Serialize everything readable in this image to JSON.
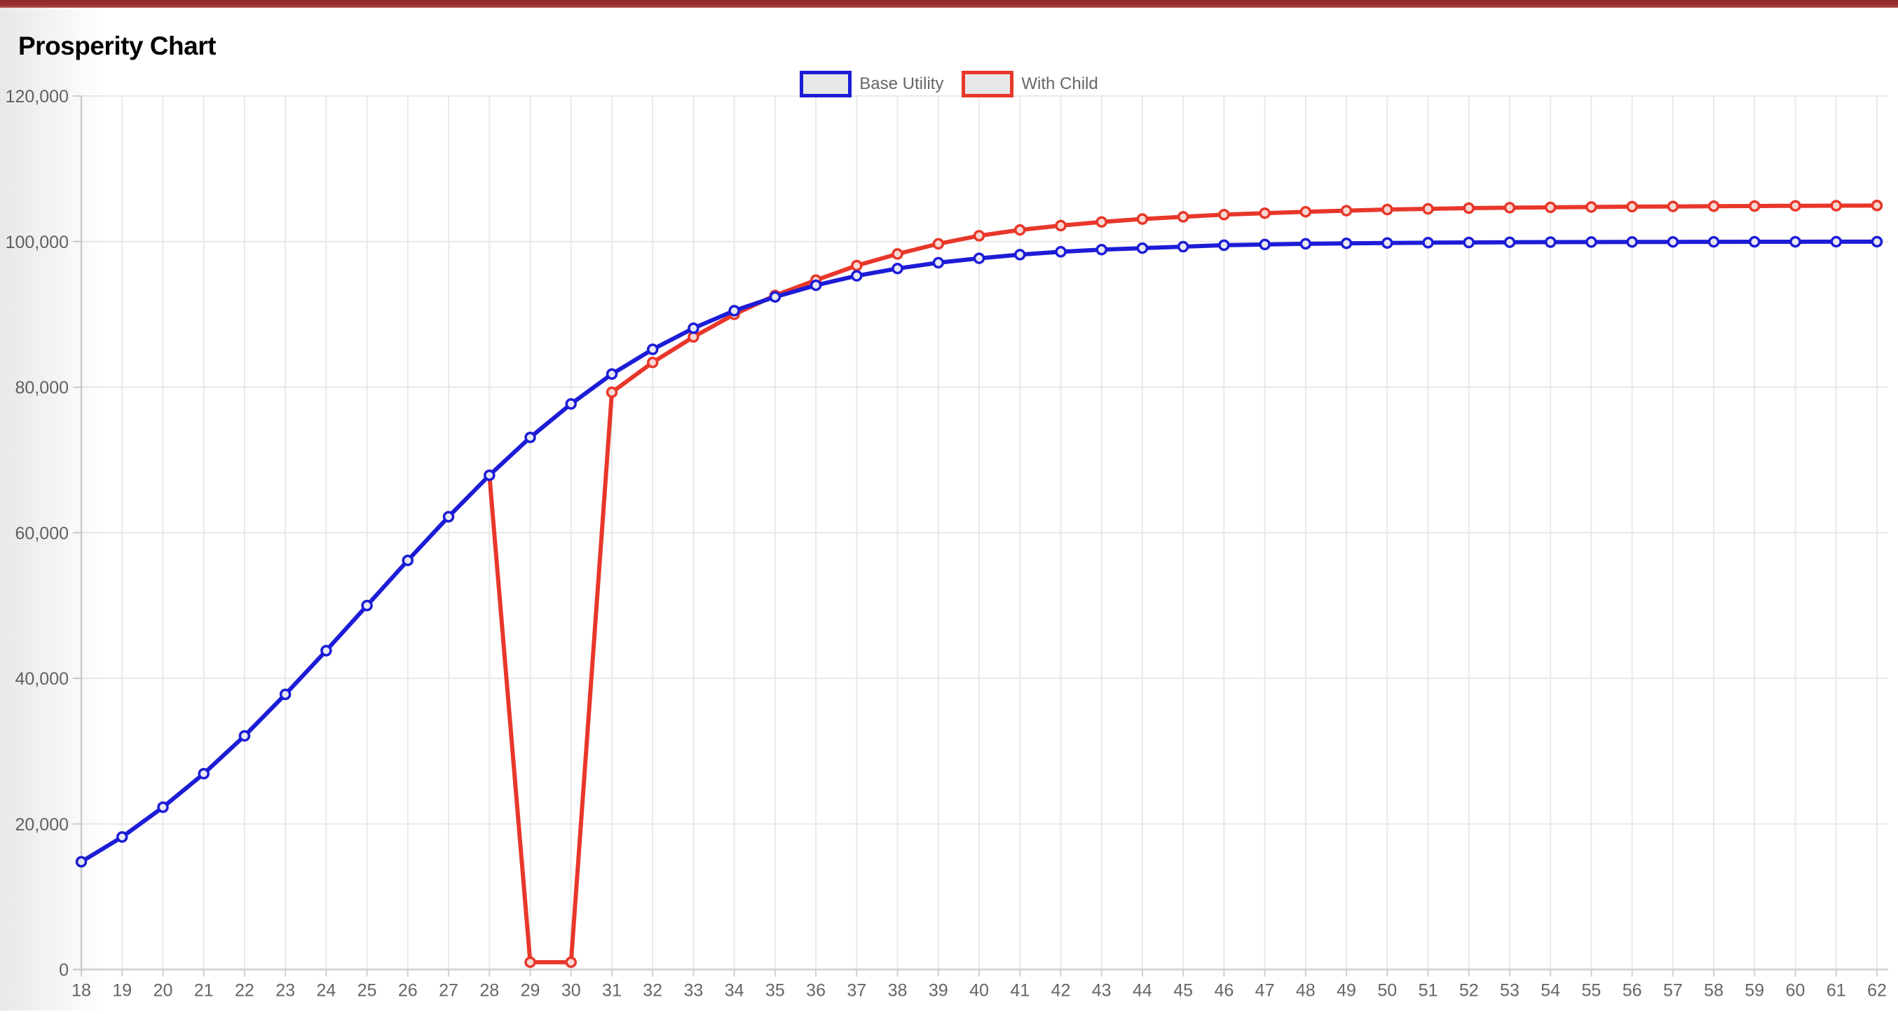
{
  "page": {
    "title": "Prosperity Chart"
  },
  "top_bar": {
    "color": "#9a3030"
  },
  "legend": {
    "items": [
      {
        "label": "Base Utility",
        "color": "#1c1cd7"
      },
      {
        "label": "With Child",
        "color": "#e8372a"
      }
    ]
  },
  "chart_data": {
    "type": "line",
    "title": "",
    "xlabel": "",
    "ylabel": "",
    "x": [
      18,
      19,
      20,
      21,
      22,
      23,
      24,
      25,
      26,
      27,
      28,
      29,
      30,
      31,
      32,
      33,
      34,
      35,
      36,
      37,
      38,
      39,
      40,
      41,
      42,
      43,
      44,
      45,
      46,
      47,
      48,
      49,
      50,
      51,
      52,
      53,
      54,
      55,
      56,
      57,
      58,
      59,
      60,
      61,
      62
    ],
    "series": [
      {
        "name": "Base Utility",
        "color": "#1c1cd7",
        "point_fill": "#e8e8f5",
        "values": [
          14800,
          18200,
          22300,
          26900,
          32100,
          37800,
          43800,
          50000,
          56200,
          62200,
          67900,
          73100,
          77700,
          81800,
          85200,
          88100,
          90500,
          92400,
          94000,
          95300,
          96300,
          97100,
          97700,
          98200,
          98600,
          98900,
          99100,
          99300,
          99500,
          99600,
          99700,
          99750,
          99800,
          99850,
          99880,
          99910,
          99930,
          99940,
          99950,
          99960,
          99970,
          99980,
          99980,
          99990,
          99990
        ]
      },
      {
        "name": "With Child",
        "color": "#e8372a",
        "point_fill": "#f7d8d3",
        "values": [
          null,
          null,
          null,
          null,
          null,
          null,
          null,
          null,
          null,
          null,
          67900,
          1000,
          1000,
          79300,
          83400,
          86900,
          90000,
          92600,
          94700,
          96700,
          98300,
          99700,
          100800,
          101600,
          102200,
          102700,
          103100,
          103400,
          103700,
          103900,
          104100,
          104250,
          104400,
          104500,
          104600,
          104650,
          104700,
          104750,
          104800,
          104830,
          104860,
          104890,
          104910,
          104930,
          104950
        ]
      }
    ],
    "xlim": [
      18,
      62
    ],
    "ylim": [
      0,
      120000
    ],
    "yticks": [
      0,
      20000,
      40000,
      60000,
      80000,
      100000,
      120000
    ],
    "ytick_labels": [
      "0",
      "20,000",
      "40,000",
      "60,000",
      "80,000",
      "100,000",
      "120,000"
    ],
    "xtick_labels": [
      "18",
      "19",
      "20",
      "21",
      "22",
      "23",
      "24",
      "25",
      "26",
      "27",
      "28",
      "29",
      "30",
      "31",
      "32",
      "33",
      "34",
      "35",
      "36",
      "37",
      "38",
      "39",
      "40",
      "41",
      "42",
      "43",
      "44",
      "45",
      "46",
      "47",
      "48",
      "49",
      "50",
      "51",
      "52",
      "53",
      "54",
      "55",
      "56",
      "57",
      "58",
      "59",
      "60",
      "61",
      "62"
    ],
    "grid": true,
    "legend_position": "top",
    "grid_color": "#e9e9e9",
    "axis_color": "#cfcfcf",
    "tick_label_color": "#666666"
  }
}
